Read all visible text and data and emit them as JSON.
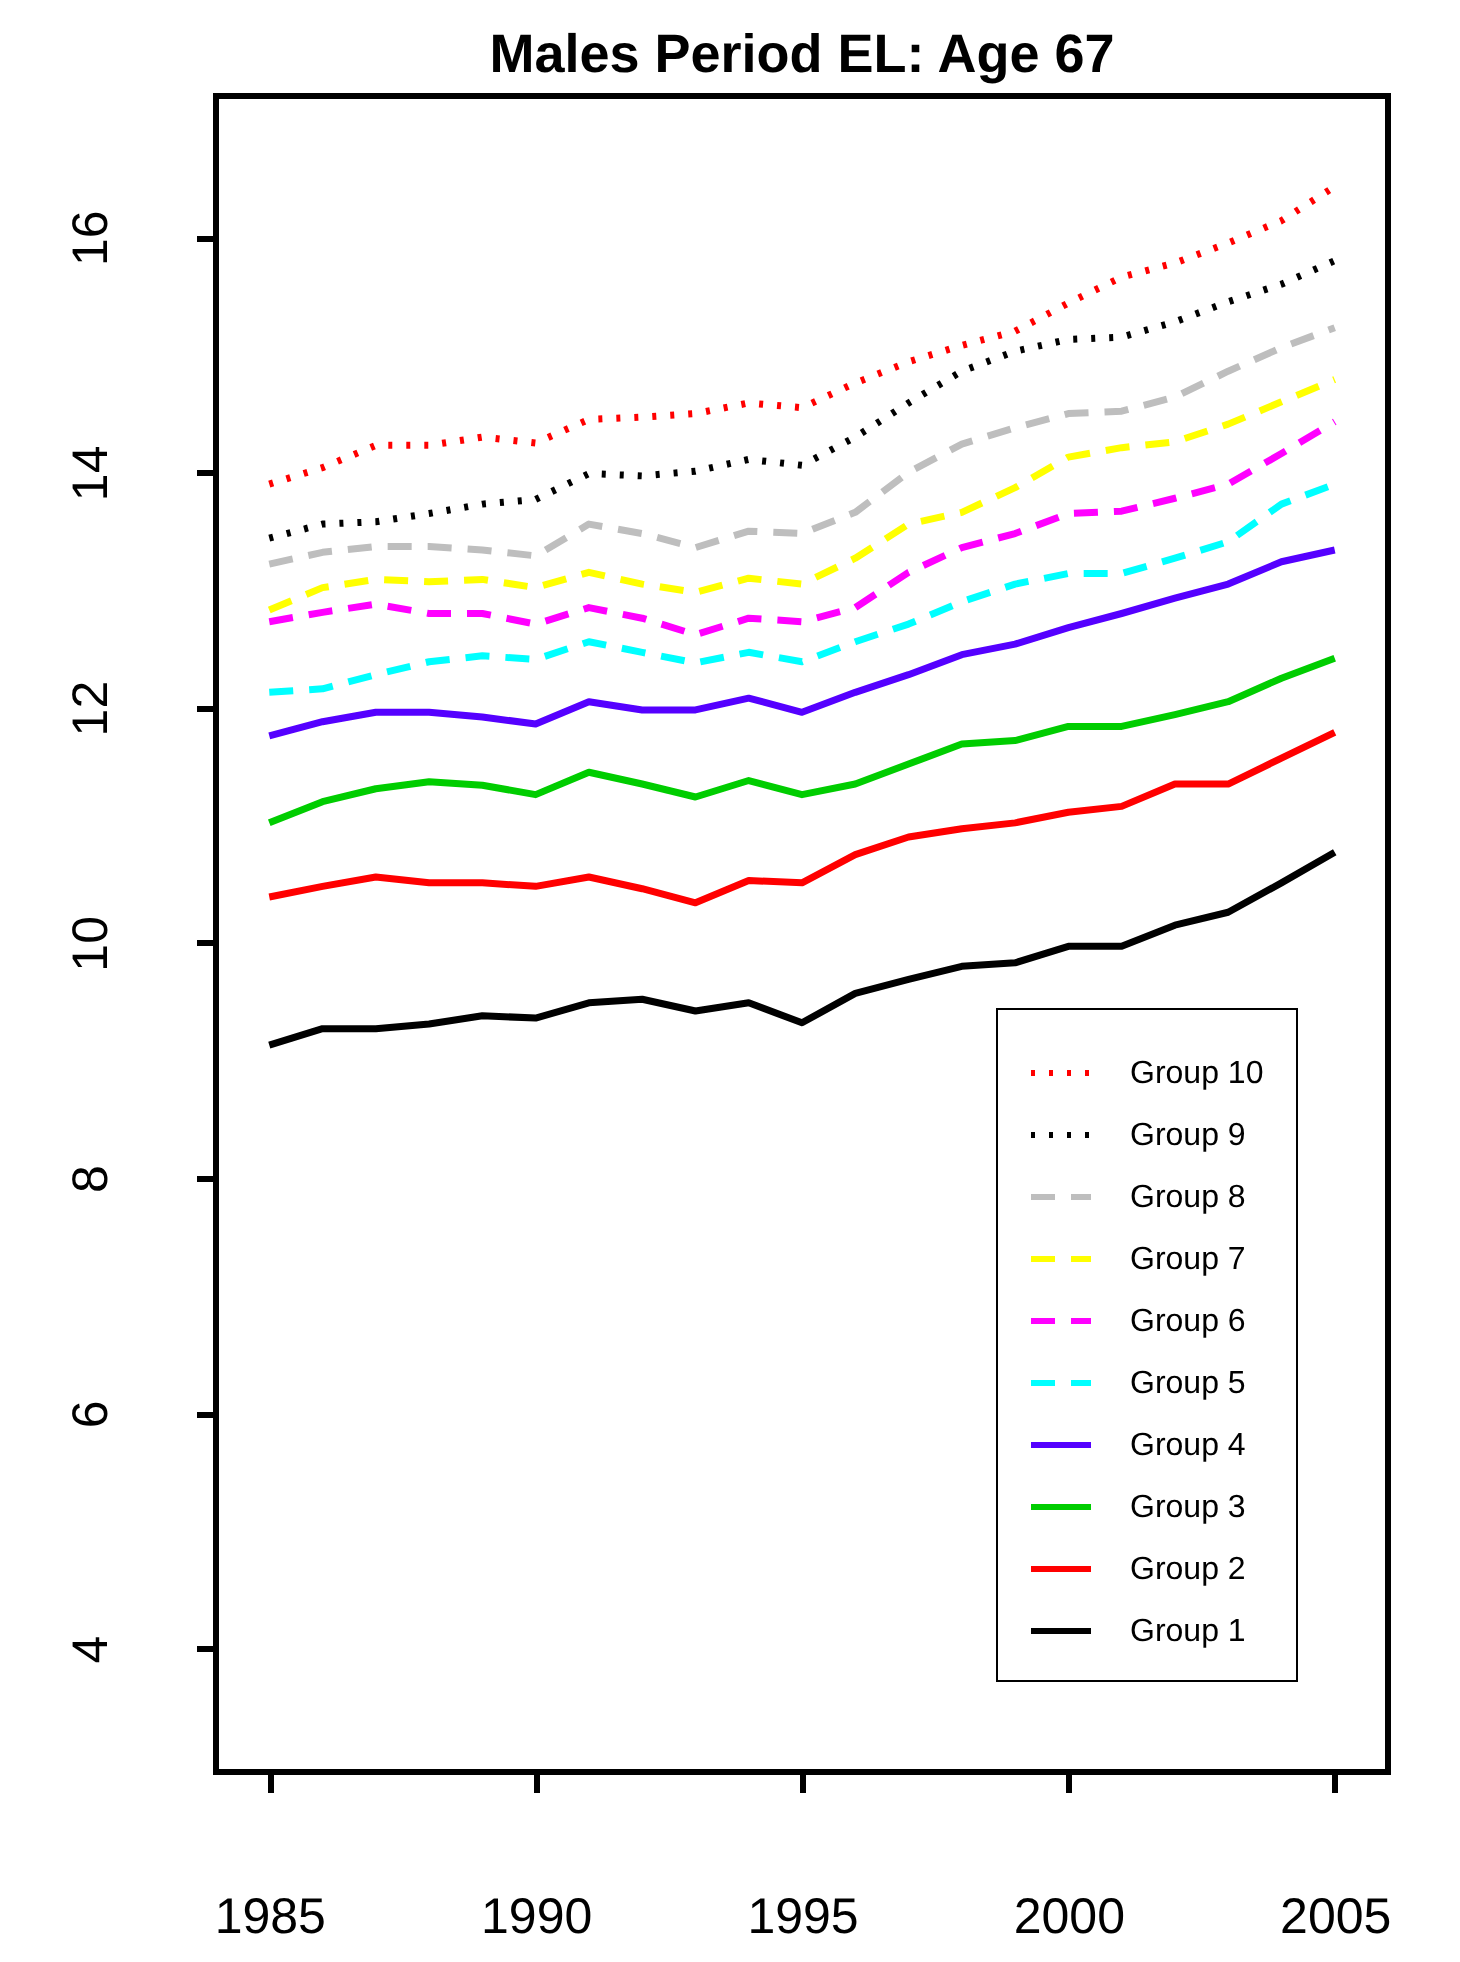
{
  "chart_data": {
    "type": "line",
    "title": "Males Period EL: Age 67",
    "x": [
      1985,
      1986,
      1987,
      1988,
      1989,
      1990,
      1991,
      1992,
      1993,
      1994,
      1995,
      1996,
      1997,
      1998,
      1999,
      2000,
      2001,
      2002,
      2003,
      2004,
      2005
    ],
    "xlim": [
      1984,
      2006
    ],
    "xticks": [
      1985,
      1990,
      1995,
      2000,
      2005
    ],
    "ylim": [
      2.95,
      17.2
    ],
    "yticks": [
      4,
      6,
      8,
      10,
      12,
      14,
      16
    ],
    "grid": false,
    "legend": "bottom right",
    "marker": "none",
    "series": [
      {
        "name": "Group 10",
        "color": "#ff0000",
        "line_style": "dotted",
        "values": [
          13.9,
          14.04,
          14.23,
          14.23,
          14.3,
          14.25,
          14.45,
          14.47,
          14.5,
          14.59,
          14.55,
          14.76,
          14.94,
          15.08,
          15.2,
          15.44,
          15.66,
          15.78,
          15.95,
          16.14,
          16.43
        ]
      },
      {
        "name": "Group 9",
        "color": "#000000",
        "line_style": "dotted",
        "values": [
          13.44,
          13.56,
          13.58,
          13.65,
          13.73,
          13.77,
          13.99,
          13.97,
          14.01,
          14.11,
          14.06,
          14.3,
          14.59,
          14.86,
          15.03,
          15.13,
          15.15,
          15.28,
          15.45,
          15.6,
          15.8
        ]
      },
      {
        "name": "Group 8",
        "color": "#bebebe",
        "line_style": "dashed",
        "values": [
          13.22,
          13.32,
          13.37,
          13.37,
          13.34,
          13.29,
          13.56,
          13.48,
          13.36,
          13.5,
          13.48,
          13.66,
          14.0,
          14.24,
          14.38,
          14.5,
          14.52,
          14.64,
          14.86,
          15.06,
          15.23
        ]
      },
      {
        "name": "Group 7",
        "color": "#ffff00",
        "line_style": "dashed",
        "values": [
          12.83,
          13.02,
          13.09,
          13.07,
          13.09,
          13.02,
          13.15,
          13.05,
          12.98,
          13.1,
          13.05,
          13.27,
          13.56,
          13.66,
          13.87,
          14.13,
          14.21,
          14.26,
          14.41,
          14.6,
          14.79
        ]
      },
      {
        "name": "Group 6",
        "color": "#ff00ff",
        "line_style": "dashed",
        "values": [
          12.73,
          12.81,
          12.88,
          12.8,
          12.8,
          12.71,
          12.85,
          12.76,
          12.62,
          12.76,
          12.73,
          12.85,
          13.15,
          13.36,
          13.48,
          13.65,
          13.67,
          13.78,
          13.9,
          14.16,
          14.43
        ]
      },
      {
        "name": "Group 5",
        "color": "#00ffff",
        "line_style": "dashed",
        "values": [
          12.13,
          12.16,
          12.28,
          12.39,
          12.44,
          12.41,
          12.56,
          12.47,
          12.38,
          12.47,
          12.39,
          12.56,
          12.71,
          12.9,
          13.05,
          13.14,
          13.14,
          13.27,
          13.41,
          13.73,
          13.9
        ]
      },
      {
        "name": "Group 4",
        "color": "#5500ff",
        "line_style": "solid",
        "values": [
          11.76,
          11.88,
          11.96,
          11.96,
          11.92,
          11.86,
          12.05,
          11.98,
          11.98,
          12.08,
          11.96,
          12.13,
          12.28,
          12.45,
          12.54,
          12.68,
          12.8,
          12.93,
          13.05,
          13.24,
          13.34
        ]
      },
      {
        "name": "Group 3",
        "color": "#00cd00",
        "line_style": "solid",
        "values": [
          11.02,
          11.2,
          11.31,
          11.37,
          11.34,
          11.26,
          11.45,
          11.35,
          11.24,
          11.38,
          11.26,
          11.35,
          11.52,
          11.69,
          11.72,
          11.84,
          11.84,
          11.94,
          12.05,
          12.25,
          12.42
        ]
      },
      {
        "name": "Group 2",
        "color": "#ff0000",
        "line_style": "solid",
        "values": [
          10.39,
          10.48,
          10.56,
          10.51,
          10.51,
          10.48,
          10.56,
          10.46,
          10.34,
          10.53,
          10.51,
          10.75,
          10.9,
          10.97,
          11.02,
          11.11,
          11.16,
          11.35,
          11.35,
          11.57,
          11.79
        ]
      },
      {
        "name": "Group 1",
        "color": "#000000",
        "line_style": "solid",
        "values": [
          9.13,
          9.27,
          9.27,
          9.31,
          9.38,
          9.36,
          9.49,
          9.52,
          9.42,
          9.49,
          9.32,
          9.57,
          9.69,
          9.8,
          9.83,
          9.97,
          9.97,
          10.15,
          10.26,
          10.51,
          10.77
        ]
      }
    ]
  }
}
